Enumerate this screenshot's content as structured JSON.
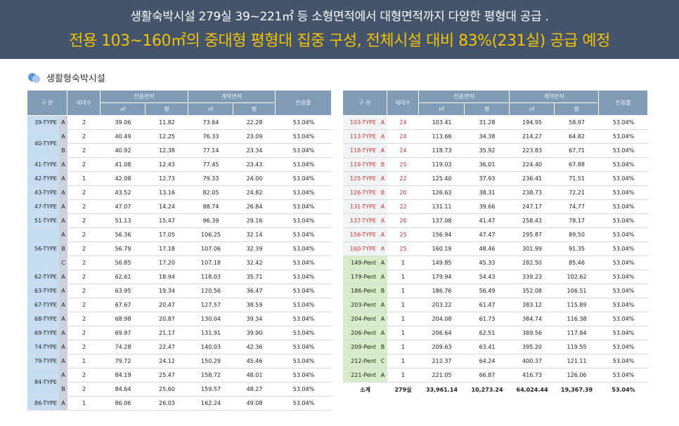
{
  "banner": {
    "line1": "생활숙박시설 279실 39~221㎡ 등 소형면적에서 대형면적까지 다양한 평형대 공급 .",
    "line2": "전용 103~160㎡의 중대형 평형대 집중 구성, 전체시설 대비 83%(231실) 공급 예정"
  },
  "section": {
    "title": "생활형숙박시설",
    "icon": "bubbles-icon"
  },
  "headers": {
    "gubun": "구 분",
    "units": "세대수",
    "exclusive_area": "전용면적",
    "contract_area": "계약면적",
    "ratio": "전용률",
    "sqm": "㎡",
    "pyeong": "평"
  },
  "colors": {
    "banner_bg": "#44546a",
    "banner_highlight": "#f5c200",
    "header_bg": "#7f9bb6",
    "left_type_bg": "#c7ddf1",
    "penthouse_bg": "#d7ecc8",
    "red_text": "#d0342c"
  },
  "left_table": {
    "groups": [
      {
        "type": "39-TYPE",
        "rows": [
          {
            "sub": "A",
            "units": "2",
            "ex_sqm": "39.06",
            "ex_py": "11.82",
            "ct_sqm": "73.64",
            "ct_py": "22.28",
            "ratio": "53.04%"
          }
        ]
      },
      {
        "type": "40-TYPE",
        "rows": [
          {
            "sub": "A",
            "units": "2",
            "ex_sqm": "40.49",
            "ex_py": "12.25",
            "ct_sqm": "76.33",
            "ct_py": "23.09",
            "ratio": "53.04%"
          },
          {
            "sub": "B",
            "units": "2",
            "ex_sqm": "40.92",
            "ex_py": "12.38",
            "ct_sqm": "77.14",
            "ct_py": "23.34",
            "ratio": "53.04%"
          }
        ]
      },
      {
        "type": "41-TYPE",
        "rows": [
          {
            "sub": "A",
            "units": "2",
            "ex_sqm": "41.08",
            "ex_py": "12.43",
            "ct_sqm": "77.45",
            "ct_py": "23.43",
            "ratio": "53.04%"
          }
        ]
      },
      {
        "type": "42-TYPE",
        "rows": [
          {
            "sub": "A",
            "units": "1",
            "ex_sqm": "42.08",
            "ex_py": "12.73",
            "ct_sqm": "79.33",
            "ct_py": "24.00",
            "ratio": "53.04%"
          }
        ]
      },
      {
        "type": "43-TYPE",
        "rows": [
          {
            "sub": "A",
            "units": "2",
            "ex_sqm": "43.52",
            "ex_py": "13.16",
            "ct_sqm": "82.05",
            "ct_py": "24.82",
            "ratio": "53.04%"
          }
        ]
      },
      {
        "type": "47-TYPE",
        "rows": [
          {
            "sub": "A",
            "units": "2",
            "ex_sqm": "47.07",
            "ex_py": "14.24",
            "ct_sqm": "88.74",
            "ct_py": "26.84",
            "ratio": "53.04%"
          }
        ]
      },
      {
        "type": "51-TYPE",
        "rows": [
          {
            "sub": "A",
            "units": "2",
            "ex_sqm": "51.13",
            "ex_py": "15.47",
            "ct_sqm": "96.39",
            "ct_py": "29.16",
            "ratio": "53.04%"
          }
        ]
      },
      {
        "type": "56-TYPE",
        "rows": [
          {
            "sub": "A",
            "units": "2",
            "ex_sqm": "56.36",
            "ex_py": "17.05",
            "ct_sqm": "106.25",
            "ct_py": "32.14",
            "ratio": "53.04%"
          },
          {
            "sub": "B",
            "units": "2",
            "ex_sqm": "56.79",
            "ex_py": "17.18",
            "ct_sqm": "107.06",
            "ct_py": "32.39",
            "ratio": "53.04%"
          },
          {
            "sub": "C",
            "units": "2",
            "ex_sqm": "56.85",
            "ex_py": "17.20",
            "ct_sqm": "107.18",
            "ct_py": "32.42",
            "ratio": "53.04%"
          }
        ]
      },
      {
        "type": "62-TYPE",
        "rows": [
          {
            "sub": "A",
            "units": "2",
            "ex_sqm": "62.61",
            "ex_py": "18.94",
            "ct_sqm": "118.03",
            "ct_py": "35.71",
            "ratio": "53.04%"
          }
        ]
      },
      {
        "type": "63-TYPE",
        "rows": [
          {
            "sub": "A",
            "units": "2",
            "ex_sqm": "63.95",
            "ex_py": "19.34",
            "ct_sqm": "120.56",
            "ct_py": "36.47",
            "ratio": "53.04%"
          }
        ]
      },
      {
        "type": "67-TYPE",
        "rows": [
          {
            "sub": "A",
            "units": "2",
            "ex_sqm": "67.67",
            "ex_py": "20.47",
            "ct_sqm": "127.57",
            "ct_py": "38.59",
            "ratio": "53.04%"
          }
        ]
      },
      {
        "type": "68-TYPE",
        "rows": [
          {
            "sub": "A",
            "units": "2",
            "ex_sqm": "68.98",
            "ex_py": "20.87",
            "ct_sqm": "130.04",
            "ct_py": "39.34",
            "ratio": "53.04%"
          }
        ]
      },
      {
        "type": "69-TYPE",
        "rows": [
          {
            "sub": "A",
            "units": "2",
            "ex_sqm": "69.97",
            "ex_py": "21.17",
            "ct_sqm": "131.91",
            "ct_py": "39.90",
            "ratio": "53.04%"
          }
        ]
      },
      {
        "type": "74-TYPE",
        "rows": [
          {
            "sub": "A",
            "units": "2",
            "ex_sqm": "74.28",
            "ex_py": "22.47",
            "ct_sqm": "140.03",
            "ct_py": "42.36",
            "ratio": "53.04%"
          }
        ]
      },
      {
        "type": "79-TYPE",
        "rows": [
          {
            "sub": "A",
            "units": "1",
            "ex_sqm": "79.72",
            "ex_py": "24.12",
            "ct_sqm": "150.29",
            "ct_py": "45.46",
            "ratio": "53.04%"
          }
        ]
      },
      {
        "type": "84-TYPE",
        "rows": [
          {
            "sub": "A",
            "units": "2",
            "ex_sqm": "84.19",
            "ex_py": "25.47",
            "ct_sqm": "158.72",
            "ct_py": "48.01",
            "ratio": "53.04%"
          },
          {
            "sub": "B",
            "units": "2",
            "ex_sqm": "84.64",
            "ex_py": "25.60",
            "ct_sqm": "159.57",
            "ct_py": "48.27",
            "ratio": "53.04%"
          }
        ]
      },
      {
        "type": "86-TYPE",
        "rows": [
          {
            "sub": "A",
            "units": "1",
            "ex_sqm": "86.06",
            "ex_py": "26.03",
            "ct_sqm": "162.24",
            "ct_py": "49.08",
            "ratio": "53.04%"
          }
        ]
      }
    ]
  },
  "right_table": {
    "rows": [
      {
        "type": "103-TYPE",
        "sub": "A",
        "units": "24",
        "ex_sqm": "103.41",
        "ex_py": "31.28",
        "ct_sqm": "194.95",
        "ct_py": "58.97",
        "ratio": "53.04%",
        "penthouse": false
      },
      {
        "type": "113-TYPE",
        "sub": "A",
        "units": "24",
        "ex_sqm": "113.66",
        "ex_py": "34.38",
        "ct_sqm": "214.27",
        "ct_py": "64.82",
        "ratio": "53.04%",
        "penthouse": false
      },
      {
        "type": "118-TYPE",
        "sub": "A",
        "units": "24",
        "ex_sqm": "118.73",
        "ex_py": "35.92",
        "ct_sqm": "223.83",
        "ct_py": "67.71",
        "ratio": "53.04%",
        "penthouse": false
      },
      {
        "type": "119-TYPE",
        "sub": "B",
        "units": "25",
        "ex_sqm": "119.03",
        "ex_py": "36.01",
        "ct_sqm": "224.40",
        "ct_py": "67.88",
        "ratio": "53.04%",
        "penthouse": false
      },
      {
        "type": "125-TYPE",
        "sub": "A",
        "units": "22",
        "ex_sqm": "125.40",
        "ex_py": "37.93",
        "ct_sqm": "236.41",
        "ct_py": "71.51",
        "ratio": "53.04%",
        "penthouse": false
      },
      {
        "type": "126-TYPE",
        "sub": "B",
        "units": "20",
        "ex_sqm": "126.63",
        "ex_py": "38.31",
        "ct_sqm": "238.73",
        "ct_py": "72.21",
        "ratio": "53.04%",
        "penthouse": false
      },
      {
        "type": "131-TYPE",
        "sub": "A",
        "units": "22",
        "ex_sqm": "131.11",
        "ex_py": "39.66",
        "ct_sqm": "247.17",
        "ct_py": "74.77",
        "ratio": "53.04%",
        "penthouse": false
      },
      {
        "type": "137-TYPE",
        "sub": "A",
        "units": "20",
        "ex_sqm": "137.08",
        "ex_py": "41.47",
        "ct_sqm": "258.43",
        "ct_py": "78.17",
        "ratio": "53.04%",
        "penthouse": false
      },
      {
        "type": "156-TYPE",
        "sub": "A",
        "units": "25",
        "ex_sqm": "156.94",
        "ex_py": "47.47",
        "ct_sqm": "295.87",
        "ct_py": "89.50",
        "ratio": "53.04%",
        "penthouse": false
      },
      {
        "type": "160-TYPE",
        "sub": "A",
        "units": "25",
        "ex_sqm": "160.19",
        "ex_py": "48.46",
        "ct_sqm": "301.99",
        "ct_py": "91.35",
        "ratio": "53.04%",
        "penthouse": false
      },
      {
        "type": "149-Pent",
        "sub": "A",
        "units": "1",
        "ex_sqm": "149.85",
        "ex_py": "45.33",
        "ct_sqm": "282.50",
        "ct_py": "85.46",
        "ratio": "53.04%",
        "penthouse": true
      },
      {
        "type": "179-Pent",
        "sub": "A",
        "units": "1",
        "ex_sqm": "179.94",
        "ex_py": "54.43",
        "ct_sqm": "339.23",
        "ct_py": "102.62",
        "ratio": "53.04%",
        "penthouse": true
      },
      {
        "type": "186-Pent",
        "sub": "B",
        "units": "1",
        "ex_sqm": "186.76",
        "ex_py": "56.49",
        "ct_sqm": "352.08",
        "ct_py": "106.51",
        "ratio": "53.04%",
        "penthouse": true
      },
      {
        "type": "203-Pent",
        "sub": "A",
        "units": "1",
        "ex_sqm": "203.22",
        "ex_py": "61.47",
        "ct_sqm": "383.12",
        "ct_py": "115.89",
        "ratio": "53.04%",
        "penthouse": true
      },
      {
        "type": "204-Pent",
        "sub": "A",
        "units": "1",
        "ex_sqm": "204.08",
        "ex_py": "61.73",
        "ct_sqm": "384.74",
        "ct_py": "116.38",
        "ratio": "53.04%",
        "penthouse": true
      },
      {
        "type": "206-Pent",
        "sub": "A",
        "units": "1",
        "ex_sqm": "206.64",
        "ex_py": "62.51",
        "ct_sqm": "389.56",
        "ct_py": "117.84",
        "ratio": "53.04%",
        "penthouse": true
      },
      {
        "type": "209-Pent",
        "sub": "B",
        "units": "1",
        "ex_sqm": "209.63",
        "ex_py": "63.41",
        "ct_sqm": "395.20",
        "ct_py": "119.55",
        "ratio": "53.04%",
        "penthouse": true
      },
      {
        "type": "212-Pent",
        "sub": "C",
        "units": "1",
        "ex_sqm": "212.37",
        "ex_py": "64.24",
        "ct_sqm": "400.37",
        "ct_py": "121.11",
        "ratio": "53.04%",
        "penthouse": true
      },
      {
        "type": "221-Pent",
        "sub": "A",
        "units": "1",
        "ex_sqm": "221.05",
        "ex_py": "66.87",
        "ct_sqm": "416.73",
        "ct_py": "126.06",
        "ratio": "53.04%",
        "penthouse": true
      }
    ],
    "total": {
      "label": "소계",
      "units": "279실",
      "ex_sqm": "33,961.14",
      "ex_py": "10,273.24",
      "ct_sqm": "64,024.44",
      "ct_py": "19,367.39",
      "ratio": "53.04%"
    }
  }
}
